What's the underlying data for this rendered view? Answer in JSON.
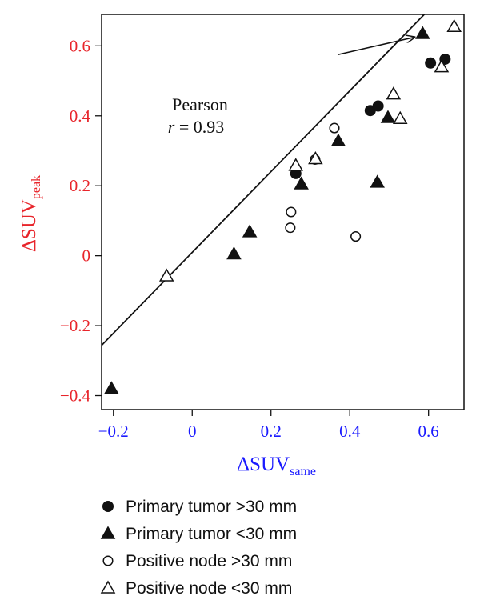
{
  "chart_data": {
    "type": "scatter",
    "title": "",
    "xlabel": {
      "main": "ΔSUV",
      "sub": "same"
    },
    "ylabel": {
      "main": "ΔSUV",
      "sub": "peak"
    },
    "xlim": [
      -0.23,
      0.69
    ],
    "ylim": [
      -0.44,
      0.69
    ],
    "xticks": [
      -0.2,
      0,
      0.2,
      0.4,
      0.6
    ],
    "xtick_labels": [
      "−0.2",
      "0",
      "0.2",
      "0.4",
      "0.6"
    ],
    "yticks": [
      -0.4,
      -0.2,
      0,
      0.2,
      0.4,
      0.6
    ],
    "ytick_labels": [
      "−0.4",
      "−0.2",
      "0",
      "0.2",
      "0.4",
      "0.6"
    ],
    "xaxis_color": "#1a1aff",
    "yaxis_color": "#e8252b",
    "grid": false,
    "legend_position": "bottom",
    "annotation": {
      "line1": "Pearson",
      "r_symbol": "r",
      "r_text": " = 0.93"
    },
    "fit_line": {
      "slope": 1.155,
      "intercept": 0.0095
    },
    "arrow": {
      "from": [
        0.37,
        0.575
      ],
      "to": [
        0.565,
        0.625
      ]
    },
    "series": [
      {
        "name": "Primary tumor >30 mm",
        "marker": "circle-filled",
        "points": [
          [
            0.263,
            0.235
          ],
          [
            0.452,
            0.415
          ],
          [
            0.472,
            0.428
          ],
          [
            0.605,
            0.551
          ],
          [
            0.642,
            0.562
          ]
        ]
      },
      {
        "name": "Primary tumor <30 mm",
        "marker": "triangle-filled",
        "points": [
          [
            -0.205,
            -0.38
          ],
          [
            0.106,
            0.005
          ],
          [
            0.146,
            0.068
          ],
          [
            0.277,
            0.205
          ],
          [
            0.371,
            0.328
          ],
          [
            0.47,
            0.21
          ],
          [
            0.497,
            0.395
          ],
          [
            0.585,
            0.635
          ]
        ]
      },
      {
        "name": "Positive node >30 mm",
        "marker": "circle-open",
        "points": [
          [
            0.249,
            0.08
          ],
          [
            0.251,
            0.125
          ],
          [
            0.312,
            0.275
          ],
          [
            0.361,
            0.365
          ],
          [
            0.415,
            0.055
          ]
        ]
      },
      {
        "name": "Positive node <30 mm",
        "marker": "triangle-open",
        "points": [
          [
            -0.065,
            -0.058
          ],
          [
            0.263,
            0.258
          ],
          [
            0.313,
            0.277
          ],
          [
            0.511,
            0.462
          ],
          [
            0.528,
            0.392
          ],
          [
            0.633,
            0.54
          ],
          [
            0.665,
            0.655
          ]
        ]
      }
    ]
  }
}
